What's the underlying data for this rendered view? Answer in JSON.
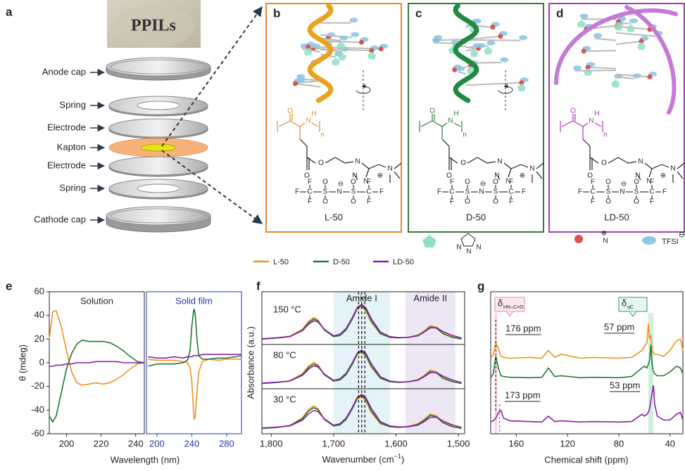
{
  "panel_labels": [
    "a",
    "b",
    "c",
    "d",
    "e",
    "f",
    "g"
  ],
  "series_names": [
    "L-50",
    "D-50",
    "LD-50"
  ],
  "series_colors": [
    "#f0921e",
    "#1f7a36",
    "#8b1fa8"
  ],
  "a": {
    "photo_label": "PPILs",
    "parts": [
      "Anode cap",
      "Spring",
      "Electrode",
      "Kapton",
      "Electrode",
      "Spring",
      "Cathode cap"
    ]
  },
  "structure": {
    "polymer_atoms": [
      "O",
      "N",
      "H",
      "n",
      "O",
      "O",
      "N",
      "N",
      "N",
      "N",
      "⊕"
    ],
    "anion_atoms": [
      "F",
      "F",
      "F",
      "C",
      "O",
      "S",
      "O",
      "N",
      "⊖",
      "S",
      "O",
      "O",
      "C",
      "F",
      "F",
      "F"
    ]
  },
  "icon_legend": {
    "triazole_atoms": [
      "N",
      "N",
      "N"
    ],
    "ammonium_atom": "N",
    "plus": "⊕",
    "tfsi": "TFSI",
    "minus": "⊖"
  },
  "e": {
    "y_label": "θ (mdeg)",
    "x_label": "Wavelength (nm)",
    "ylim": [
      -60,
      60
    ],
    "yticks": [
      -60,
      -40,
      -20,
      0,
      20,
      40,
      60
    ],
    "solution": {
      "title": "Solution",
      "xlim": [
        190,
        245
      ],
      "xticks": [
        200,
        220,
        240
      ],
      "x": [
        190,
        192,
        194,
        197,
        200,
        203,
        206,
        209,
        213,
        217,
        221,
        225,
        229,
        233,
        237,
        241,
        245
      ],
      "values": [
        [
          20,
          43,
          44,
          30,
          10,
          -8,
          -17,
          -19,
          -18,
          -17,
          -18,
          -17,
          -14,
          -10,
          -5,
          -1,
          0
        ],
        [
          -45,
          -50,
          -45,
          -25,
          -5,
          8,
          16,
          19,
          18,
          18,
          18,
          17,
          14,
          10,
          5,
          1,
          0
        ],
        [
          -3,
          -3,
          -2,
          -2,
          -1,
          -1,
          0,
          0,
          0,
          1,
          1,
          1,
          1,
          0,
          0,
          0,
          0
        ]
      ]
    },
    "film": {
      "title": "Solid film",
      "xlim": [
        188,
        297
      ],
      "xticks": [
        200,
        240,
        280
      ],
      "x": [
        190,
        200,
        210,
        220,
        230,
        235,
        238,
        240,
        242,
        243,
        244,
        246,
        248,
        252,
        260,
        270,
        280,
        290,
        297
      ],
      "values": [
        [
          3,
          2,
          2,
          2,
          1,
          0,
          -4,
          -15,
          -40,
          -48,
          -45,
          -25,
          -8,
          1,
          3,
          2,
          3,
          3,
          3
        ],
        [
          -3,
          -1,
          -1,
          -1,
          0,
          2,
          10,
          30,
          44,
          45,
          40,
          20,
          6,
          3,
          3,
          4,
          4,
          5,
          6
        ],
        [
          5,
          4,
          4,
          5,
          4,
          5,
          5,
          5,
          6,
          6,
          6,
          6,
          6,
          7,
          7,
          7,
          7,
          7,
          7
        ]
      ]
    }
  },
  "f": {
    "y_label": "Absorbance (a.u.)",
    "x_label": [
      "Wavenumber (cm",
      "−1",
      ")"
    ],
    "xlim": [
      1815,
      1490
    ],
    "xticks": [
      {
        "value": 1800,
        "label": "1,800"
      },
      {
        "value": 1700,
        "label": "1,700"
      },
      {
        "value": 1600,
        "label": "1,600"
      },
      {
        "value": 1500,
        "label": "1,500"
      }
    ],
    "regions": [
      {
        "label": "Amide I",
        "range": [
          1700,
          1610
        ]
      },
      {
        "label": "Amide II",
        "range": [
          1585,
          1505
        ]
      }
    ],
    "dashed_lines": [
      1660,
      1655,
      1650
    ],
    "x": [
      1815,
      1790,
      1770,
      1750,
      1740,
      1732,
      1725,
      1715,
      1700,
      1690,
      1680,
      1670,
      1662,
      1655,
      1648,
      1640,
      1625,
      1610,
      1595,
      1580,
      1565,
      1555,
      1545,
      1535,
      1525,
      1510,
      1495
    ],
    "temperatures": [
      {
        "label": "150 °C",
        "values": [
          [
            0.05,
            0.08,
            0.13,
            0.32,
            0.54,
            0.64,
            0.57,
            0.3,
            0.12,
            0.15,
            0.3,
            0.6,
            0.88,
            0.93,
            0.82,
            0.52,
            0.19,
            0.1,
            0.08,
            0.1,
            0.16,
            0.27,
            0.42,
            0.38,
            0.22,
            0.11,
            0.05
          ],
          [
            0.05,
            0.08,
            0.12,
            0.3,
            0.5,
            0.6,
            0.55,
            0.3,
            0.12,
            0.15,
            0.3,
            0.6,
            0.9,
            0.97,
            0.85,
            0.55,
            0.2,
            0.1,
            0.08,
            0.1,
            0.15,
            0.25,
            0.38,
            0.35,
            0.2,
            0.1,
            0.05
          ],
          [
            0.06,
            0.09,
            0.12,
            0.28,
            0.46,
            0.55,
            0.52,
            0.32,
            0.14,
            0.18,
            0.34,
            0.64,
            0.92,
            1.0,
            0.9,
            0.62,
            0.24,
            0.12,
            0.09,
            0.1,
            0.14,
            0.24,
            0.36,
            0.36,
            0.26,
            0.15,
            0.08
          ]
        ]
      },
      {
        "label": "80 °C",
        "values": [
          [
            0.05,
            0.08,
            0.13,
            0.33,
            0.55,
            0.65,
            0.58,
            0.3,
            0.12,
            0.15,
            0.3,
            0.6,
            0.88,
            0.94,
            0.82,
            0.52,
            0.19,
            0.1,
            0.08,
            0.1,
            0.16,
            0.28,
            0.43,
            0.38,
            0.22,
            0.11,
            0.05
          ],
          [
            0.05,
            0.08,
            0.12,
            0.3,
            0.51,
            0.6,
            0.55,
            0.3,
            0.12,
            0.15,
            0.3,
            0.6,
            0.9,
            0.97,
            0.85,
            0.55,
            0.2,
            0.1,
            0.08,
            0.1,
            0.15,
            0.25,
            0.39,
            0.35,
            0.2,
            0.1,
            0.05
          ],
          [
            0.06,
            0.09,
            0.12,
            0.28,
            0.46,
            0.55,
            0.52,
            0.32,
            0.14,
            0.18,
            0.34,
            0.64,
            0.92,
            1.0,
            0.9,
            0.62,
            0.24,
            0.12,
            0.09,
            0.1,
            0.14,
            0.24,
            0.36,
            0.36,
            0.26,
            0.15,
            0.08
          ]
        ]
      },
      {
        "label": "30 °C",
        "values": [
          [
            0.05,
            0.08,
            0.14,
            0.35,
            0.58,
            0.68,
            0.6,
            0.31,
            0.12,
            0.15,
            0.3,
            0.6,
            0.87,
            0.93,
            0.8,
            0.5,
            0.18,
            0.1,
            0.08,
            0.11,
            0.18,
            0.3,
            0.45,
            0.4,
            0.23,
            0.11,
            0.05
          ],
          [
            0.05,
            0.08,
            0.13,
            0.32,
            0.54,
            0.63,
            0.57,
            0.3,
            0.12,
            0.15,
            0.3,
            0.6,
            0.9,
            0.97,
            0.85,
            0.55,
            0.2,
            0.1,
            0.08,
            0.1,
            0.16,
            0.27,
            0.42,
            0.37,
            0.21,
            0.1,
            0.05
          ],
          [
            0.06,
            0.09,
            0.12,
            0.28,
            0.46,
            0.55,
            0.52,
            0.32,
            0.14,
            0.18,
            0.34,
            0.64,
            0.92,
            1.0,
            0.9,
            0.62,
            0.24,
            0.12,
            0.09,
            0.1,
            0.14,
            0.24,
            0.36,
            0.36,
            0.26,
            0.15,
            0.08
          ]
        ]
      }
    ]
  },
  "g": {
    "x_label": "Chemical shift (ppm)",
    "xlim": [
      180,
      30
    ],
    "xticks": [
      160,
      120,
      80,
      40
    ],
    "x": [
      180,
      178,
      176,
      174,
      172,
      170,
      165,
      150,
      140,
      135,
      130,
      125,
      110,
      100,
      80,
      70,
      62,
      60,
      58,
      57,
      56,
      55,
      54,
      53,
      52,
      50,
      45,
      40,
      35,
      32,
      30
    ],
    "values": [
      [
        0.1,
        0.2,
        0.5,
        0.35,
        0.15,
        0.12,
        0.1,
        0.12,
        0.1,
        0.3,
        0.12,
        0.2,
        0.1,
        0.12,
        0.1,
        0.12,
        0.3,
        0.4,
        0.5,
        1.0,
        0.6,
        0.7,
        0.3,
        0.25,
        0.2,
        0.2,
        0.15,
        0.3,
        0.55,
        0.6,
        0.3
      ],
      [
        0.05,
        0.15,
        0.6,
        0.3,
        0.1,
        0.08,
        0.06,
        0.05,
        0.06,
        0.3,
        0.08,
        0.1,
        0.05,
        0.06,
        0.05,
        0.08,
        0.3,
        0.35,
        0.3,
        0.4,
        0.5,
        0.9,
        0.4,
        0.2,
        0.15,
        0.1,
        0.1,
        0.2,
        0.35,
        0.3,
        0.15
      ],
      [
        0.05,
        0.08,
        0.15,
        0.3,
        0.35,
        0.15,
        0.08,
        0.06,
        0.05,
        0.2,
        0.06,
        0.08,
        0.05,
        0.06,
        0.05,
        0.06,
        0.25,
        0.2,
        0.25,
        0.3,
        0.4,
        0.6,
        0.8,
        1.0,
        0.5,
        0.2,
        0.1,
        0.1,
        0.25,
        0.3,
        0.1
      ]
    ],
    "callouts": [
      {
        "symbol": "δ",
        "subscript": "HN–C=O"
      },
      {
        "symbol": "δ",
        "subscript": "αC"
      }
    ],
    "peak_labels": [
      "176 ppm",
      "57 ppm",
      "173 ppm",
      "53 ppm"
    ]
  }
}
